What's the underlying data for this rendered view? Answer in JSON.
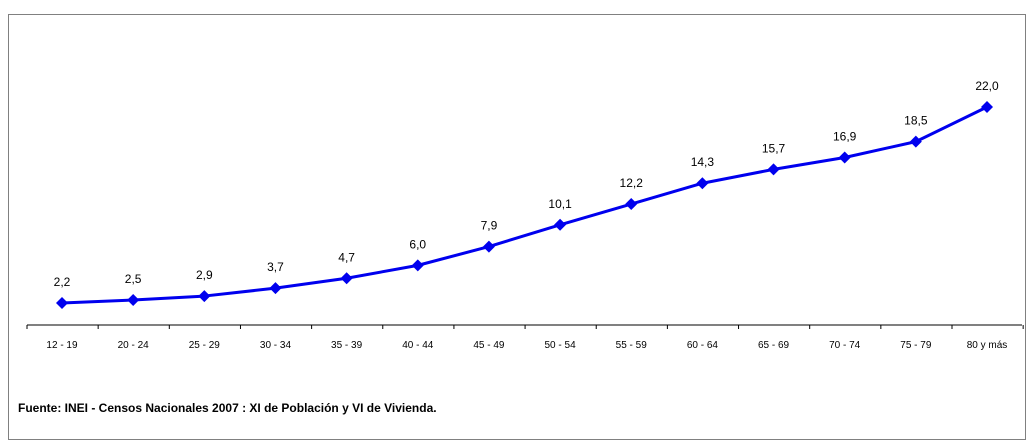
{
  "source_note": "Fuente: INEI - Censos Nacionales 2007 : XI de Población y VI de Vivienda.",
  "colors": {
    "line": "#0000EE",
    "marker": "#0000EE",
    "axis": "#000000",
    "frame": "#808080"
  },
  "chart_data": {
    "type": "line",
    "title": "",
    "xlabel": "",
    "ylabel": "",
    "categories": [
      "12 - 19",
      "20 - 24",
      "25 - 29",
      "30 - 34",
      "35 - 39",
      "40 - 44",
      "45 - 49",
      "50 - 54",
      "55 - 59",
      "60 - 64",
      "65 - 69",
      "70 - 74",
      "75 - 79",
      "80 y más"
    ],
    "series": [
      {
        "values": [
          2.2,
          2.5,
          2.9,
          3.7,
          4.7,
          6.0,
          7.9,
          10.1,
          12.2,
          14.3,
          15.7,
          16.9,
          18.5,
          22.0
        ],
        "labels": [
          "2,2",
          "2,5",
          "2,9",
          "3,7",
          "4,7",
          "6,0",
          "7,9",
          "10,1",
          "12,2",
          "14,3",
          "15,7",
          "16,9",
          "18,5",
          "22,0"
        ],
        "marker": "diamond"
      }
    ],
    "grid": false,
    "legend": "none",
    "y_axis_visible": false
  }
}
